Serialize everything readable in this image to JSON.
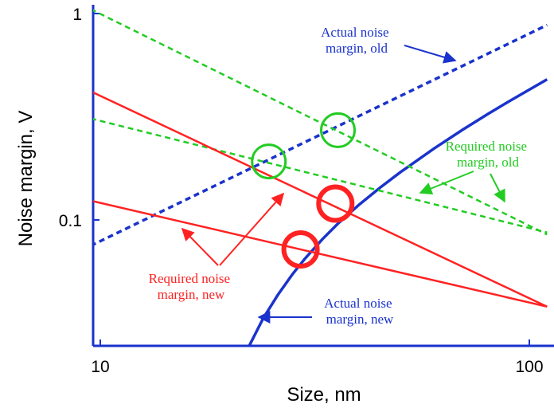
{
  "chart_data": {
    "type": "line",
    "xscale": "log",
    "yscale": "log",
    "xlim": [
      9.5,
      110
    ],
    "ylim": [
      0.017,
      1.05
    ],
    "xlabel": "Size, nm",
    "ylabel": "Noise margin,  V",
    "x_ticks": [
      {
        "value": 10,
        "label": "10"
      },
      {
        "value": 100,
        "label": "100"
      }
    ],
    "y_ticks": [
      {
        "value": 1,
        "label": "1"
      },
      {
        "value": 0.1,
        "label": "0.1"
      }
    ],
    "grid": false,
    "legend": "none",
    "colors": {
      "old": "#22cc22",
      "new": "#ff2222",
      "actual": "#1a33cc",
      "frame": "#1a33cc"
    },
    "series": [
      {
        "key": "actual_old",
        "color": "#1a33cc",
        "style": "dashed",
        "width": 3.5,
        "x": [
          9.5,
          110
        ],
        "y": [
          0.075,
          0.88
        ]
      },
      {
        "key": "actual_new",
        "color": "#1a33cc",
        "style": "solid",
        "width": 3.5,
        "x": [
          20.7,
          22,
          24,
          26,
          28,
          30,
          33,
          36,
          40,
          45,
          50,
          60,
          70,
          80,
          90,
          100,
          110
        ],
        "y": [
          0.017,
          0.0235,
          0.0335,
          0.0437,
          0.0543,
          0.065,
          0.081,
          0.097,
          0.118,
          0.144,
          0.17,
          0.222,
          0.274,
          0.326,
          0.377,
          0.428,
          0.48
        ]
      },
      {
        "key": "req_old_1",
        "color": "#22cc22",
        "style": "dashed",
        "width": 2.5,
        "x": [
          9.5,
          110
        ],
        "y": [
          1.05,
          0.085
        ]
      },
      {
        "key": "req_old_2",
        "color": "#22cc22",
        "style": "dashed",
        "width": 2.5,
        "x": [
          9.5,
          110
        ],
        "y": [
          0.31,
          0.087
        ]
      },
      {
        "key": "req_new_1",
        "color": "#ff2222",
        "style": "solid",
        "width": 2.5,
        "x": [
          9.5,
          110
        ],
        "y": [
          0.42,
          0.038
        ]
      },
      {
        "key": "req_new_2",
        "color": "#ff2222",
        "style": "solid",
        "width": 2.5,
        "x": [
          9.5,
          110
        ],
        "y": [
          0.124,
          0.038
        ]
      }
    ],
    "markers": [
      {
        "color": "#22cc22",
        "width": 3,
        "x": 24.7,
        "y": 0.192
      },
      {
        "color": "#22cc22",
        "width": 3,
        "x": 35.8,
        "y": 0.272
      },
      {
        "color": "#ff2222",
        "width": 6,
        "x": 35.3,
        "y": 0.12
      },
      {
        "color": "#ff2222",
        "width": 6,
        "x": 29.3,
        "y": 0.072
      }
    ],
    "annotations": [
      {
        "lines": [
          "Actual noise",
          "margin, old"
        ],
        "color": "#1a33cc"
      },
      {
        "lines": [
          "Required noise",
          "margin, old"
        ],
        "color": "#22cc22"
      },
      {
        "lines": [
          "Required noise",
          "margin, new"
        ],
        "color": "#ff2222"
      },
      {
        "lines": [
          "Actual noise",
          "margin, new"
        ],
        "color": "#1a33cc"
      }
    ]
  }
}
